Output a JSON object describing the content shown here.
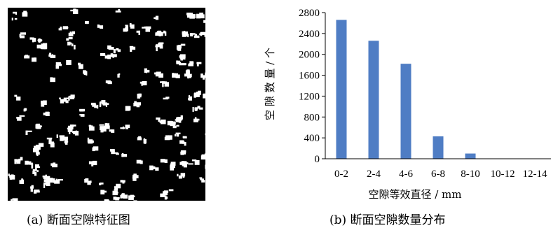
{
  "figure": {
    "caption_a": "(a)  断面空隙特征图",
    "caption_b": "(b)  断面空隙数量分布"
  },
  "colors": {
    "bar": "#4f7dc4",
    "image_background": "#000000",
    "void_pixels": "#ffffff"
  },
  "chart_data": {
    "type": "bar",
    "title": "",
    "xlabel": "空隙等效直径 / mm",
    "ylabel": "空 隙 数 量 / 个",
    "categories": [
      "0-2",
      "2-4",
      "4-6",
      "6-8",
      "8-10",
      "10-12",
      "12-14"
    ],
    "values": [
      2660,
      2260,
      1820,
      430,
      100,
      0,
      0
    ],
    "ylim": [
      0,
      2800
    ],
    "yticks": [
      0,
      400,
      800,
      1200,
      1600,
      2000,
      2400,
      2800
    ],
    "grid": false,
    "legend": "none"
  }
}
